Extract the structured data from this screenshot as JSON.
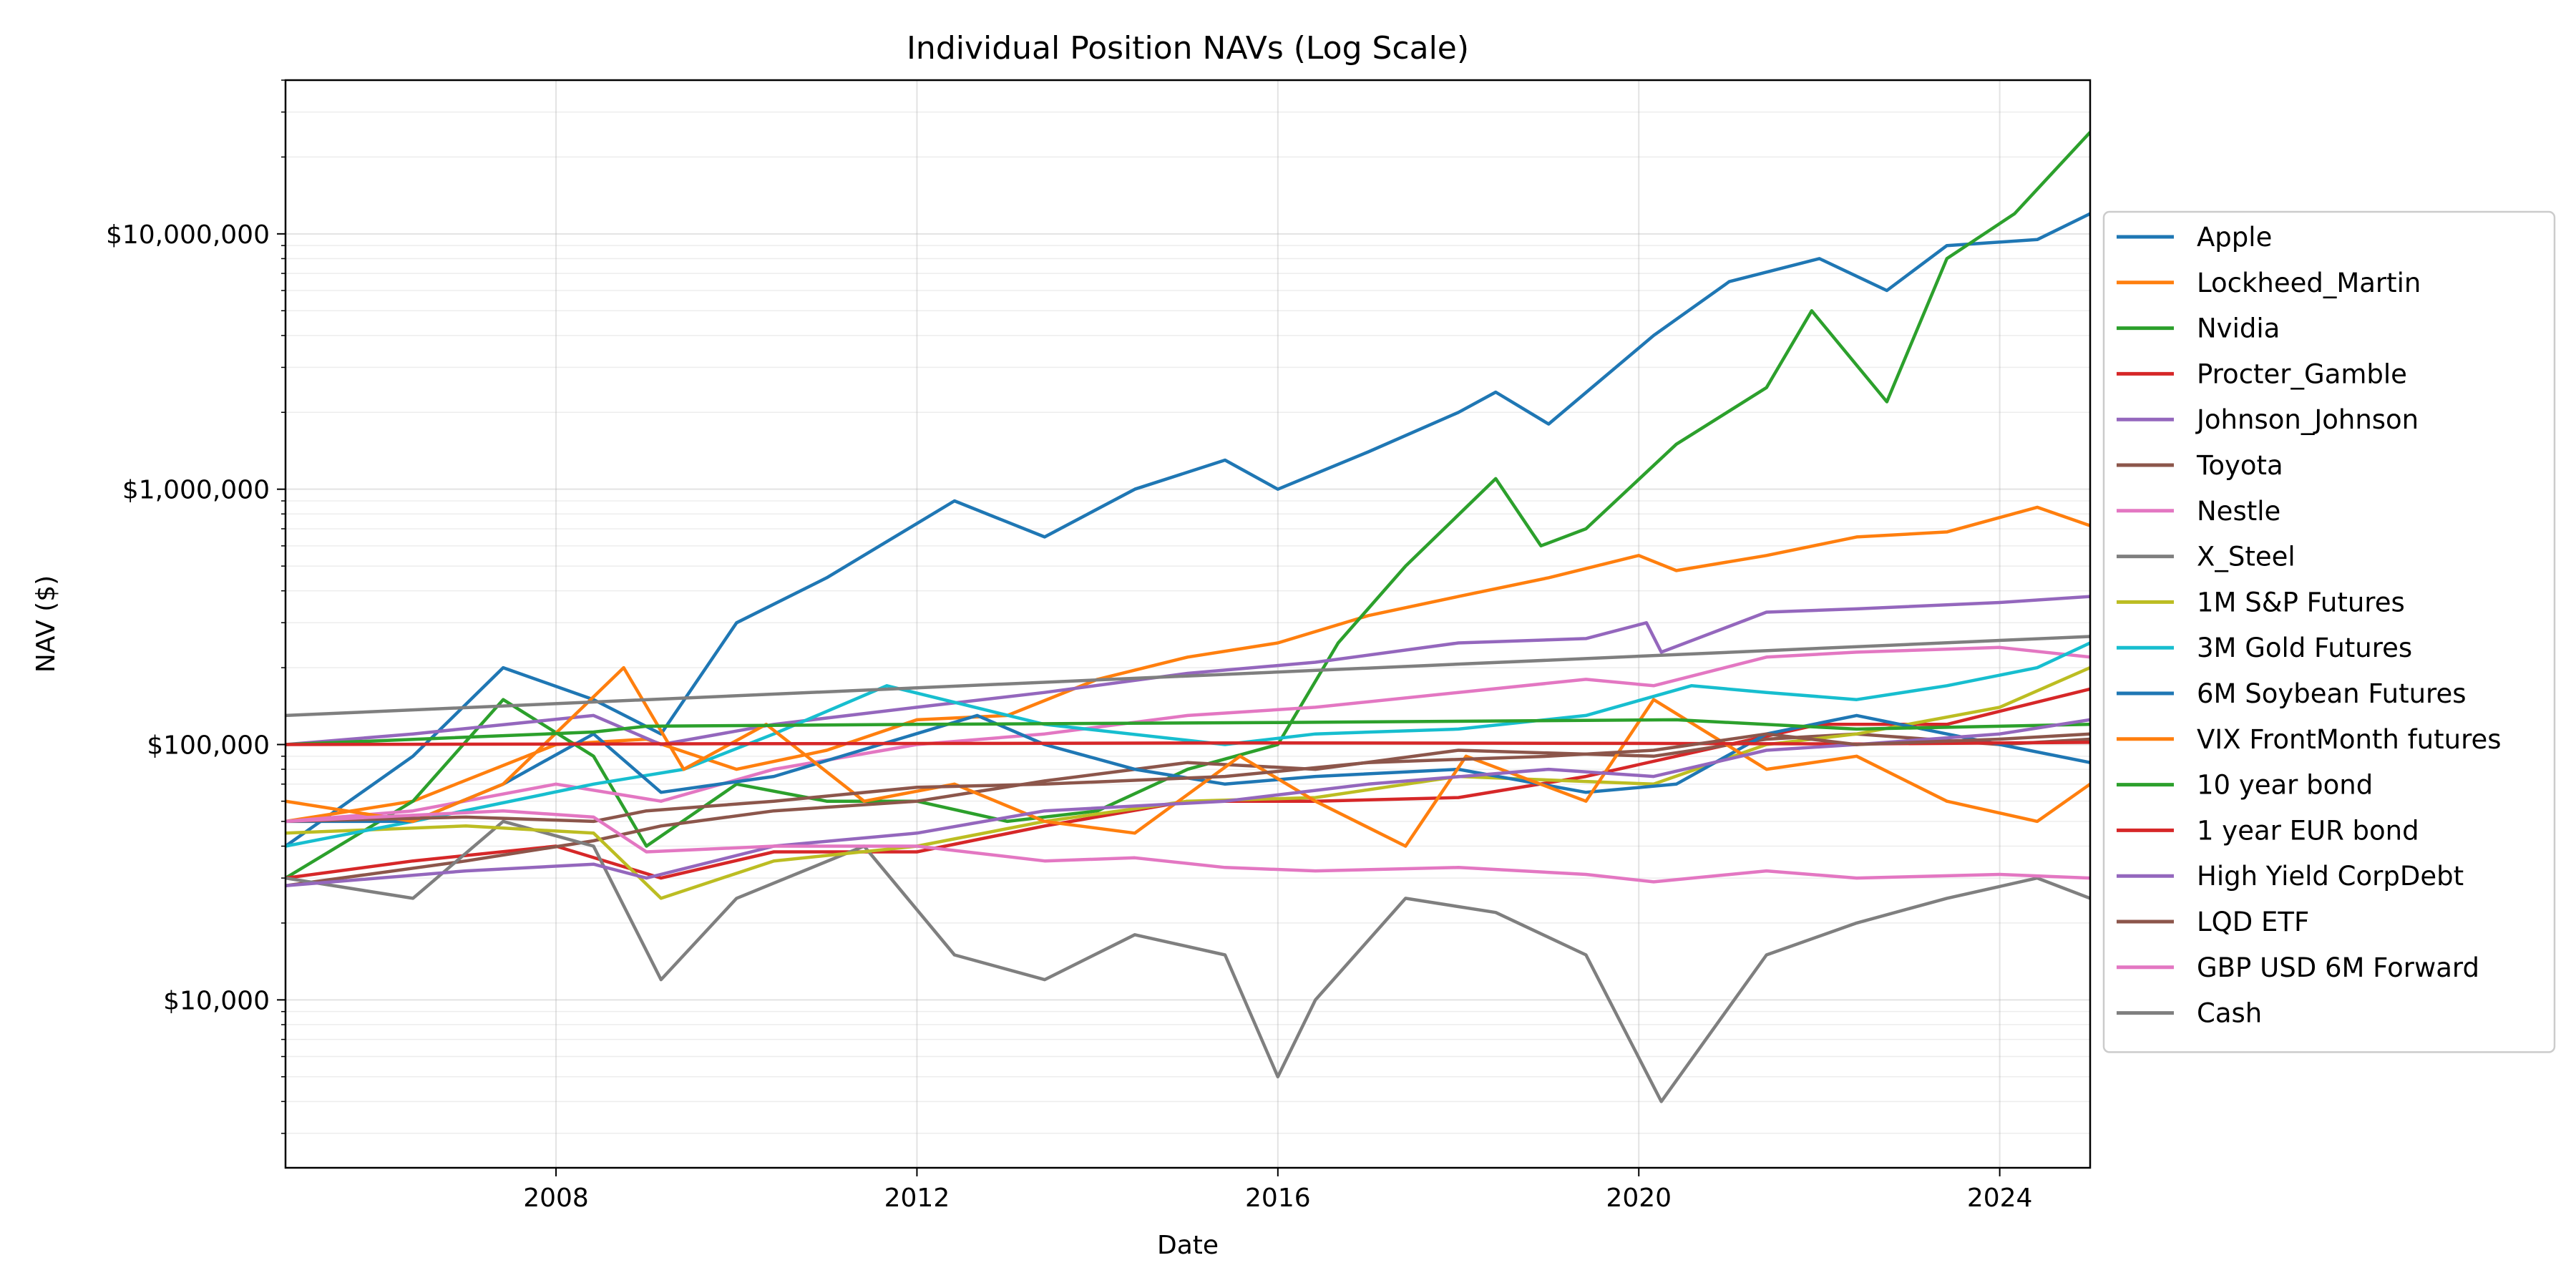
{
  "chart_data": {
    "type": "line",
    "title": "Individual Position NAVs (Log Scale)",
    "xlabel": "Date",
    "ylabel": "NAV ($)",
    "y_scale": "log",
    "xlim": [
      "2005-01-01",
      "2025-01-01"
    ],
    "ylim": [
      2200,
      40000000
    ],
    "x_ticks": [
      "2008-01-01",
      "2012-01-01",
      "2016-01-01",
      "2020-01-01",
      "2024-01-01"
    ],
    "x_tick_labels": [
      "2008",
      "2012",
      "2016",
      "2020",
      "2024"
    ],
    "y_ticks": [
      10000,
      100000,
      1000000,
      10000000
    ],
    "y_tick_labels": [
      "$10,000",
      "$100,000",
      "$1,000,000",
      "$10,000,000"
    ],
    "grid": true,
    "legend_position": "right, outside plot",
    "series": [
      {
        "name": "Apple",
        "color": "#1f77b4",
        "x": [
          "2005-01",
          "2006-06",
          "2007-06",
          "2008-06",
          "2009-03",
          "2010-01",
          "2011-01",
          "2012-06",
          "2013-06",
          "2014-06",
          "2015-06",
          "2016-01",
          "2017-01",
          "2018-01",
          "2018-06",
          "2019-01",
          "2020-03",
          "2021-01",
          "2022-01",
          "2022-10",
          "2023-06",
          "2024-06",
          "2025-01"
        ],
        "values": [
          40000,
          90000,
          200000,
          150000,
          110000,
          300000,
          450000,
          900000,
          650000,
          1000000,
          1300000,
          1000000,
          1400000,
          2000000,
          2400000,
          1800000,
          4000000,
          6500000,
          8000000,
          6000000,
          9000000,
          9500000,
          12000000
        ]
      },
      {
        "name": "Lockheed_Martin",
        "color": "#ff7f0e",
        "x": [
          "2005-01",
          "2006-06",
          "2008-01",
          "2009-01",
          "2010-01",
          "2011-01",
          "2012-01",
          "2013-01",
          "2014-01",
          "2015-01",
          "2016-01",
          "2017-01",
          "2018-01",
          "2019-01",
          "2020-01",
          "2020-06",
          "2021-06",
          "2022-06",
          "2023-06",
          "2024-06",
          "2025-01"
        ],
        "values": [
          50000,
          60000,
          100000,
          105000,
          80000,
          95000,
          125000,
          130000,
          180000,
          220000,
          250000,
          320000,
          380000,
          450000,
          550000,
          480000,
          550000,
          650000,
          680000,
          850000,
          720000
        ]
      },
      {
        "name": "Nvidia",
        "color": "#2ca02c",
        "x": [
          "2005-01",
          "2006-06",
          "2007-06",
          "2008-06",
          "2009-01",
          "2010-01",
          "2011-01",
          "2012-01",
          "2013-01",
          "2014-01",
          "2015-01",
          "2016-01",
          "2016-09",
          "2017-06",
          "2018-06",
          "2018-12",
          "2019-06",
          "2020-06",
          "2021-06",
          "2021-12",
          "2022-10",
          "2023-06",
          "2024-03",
          "2025-01"
        ],
        "values": [
          30000,
          60000,
          150000,
          90000,
          40000,
          70000,
          60000,
          60000,
          50000,
          55000,
          80000,
          100000,
          250000,
          500000,
          1100000,
          600000,
          700000,
          1500000,
          2500000,
          5000000,
          2200000,
          8000000,
          12000000,
          25000000
        ]
      },
      {
        "name": "Procter_Gamble",
        "color": "#d62728",
        "x": [
          "2005-01",
          "2006-06",
          "2008-01",
          "2009-03",
          "2010-06",
          "2012-01",
          "2013-06",
          "2015-01",
          "2016-06",
          "2018-01",
          "2019-06",
          "2020-06",
          "2022-01",
          "2023-06",
          "2025-01"
        ],
        "values": [
          30000,
          35000,
          40000,
          30000,
          38000,
          38000,
          48000,
          60000,
          60000,
          62000,
          75000,
          90000,
          120000,
          120000,
          165000
        ]
      },
      {
        "name": "Johnson_Johnson",
        "color": "#9467bd",
        "x": [
          "2005-01",
          "2006-06",
          "2008-06",
          "2009-03",
          "2010-06",
          "2012-01",
          "2013-06",
          "2015-01",
          "2016-06",
          "2018-01",
          "2019-06",
          "2020-02",
          "2020-04",
          "2021-06",
          "2022-06",
          "2024-01",
          "2025-01"
        ],
        "values": [
          100000,
          110000,
          130000,
          100000,
          120000,
          140000,
          160000,
          190000,
          210000,
          250000,
          260000,
          300000,
          230000,
          330000,
          340000,
          360000,
          380000
        ]
      },
      {
        "name": "Toyota",
        "color": "#8c564b",
        "x": [
          "2005-01",
          "2007-01",
          "2008-06",
          "2009-03",
          "2010-06",
          "2012-01",
          "2013-06",
          "2015-01",
          "2016-06",
          "2018-01",
          "2020-03",
          "2021-06",
          "2022-06",
          "2024-01",
          "2025-01"
        ],
        "values": [
          28000,
          35000,
          42000,
          48000,
          55000,
          60000,
          72000,
          85000,
          80000,
          95000,
          90000,
          105000,
          110000,
          100000,
          105000
        ]
      },
      {
        "name": "Nestle",
        "color": "#e377c2",
        "x": [
          "2005-01",
          "2006-06",
          "2008-01",
          "2009-03",
          "2010-06",
          "2012-01",
          "2013-06",
          "2015-01",
          "2016-06",
          "2018-01",
          "2019-06",
          "2020-03",
          "2021-06",
          "2022-06",
          "2024-01",
          "2025-01"
        ],
        "values": [
          50000,
          55000,
          70000,
          60000,
          80000,
          100000,
          110000,
          130000,
          140000,
          160000,
          180000,
          170000,
          220000,
          230000,
          240000,
          220000
        ]
      },
      {
        "name": "X_Steel",
        "color": "#7f7f7f",
        "x": [
          "2005-01",
          "2006-06",
          "2007-06",
          "2008-06",
          "2009-03",
          "2010-01",
          "2011-06",
          "2012-06",
          "2013-06",
          "2014-06",
          "2015-06",
          "2016-01",
          "2016-06",
          "2017-06",
          "2018-06",
          "2019-06",
          "2020-04",
          "2021-06",
          "2022-06",
          "2023-06",
          "2024-06",
          "2025-01"
        ],
        "values": [
          30000,
          25000,
          50000,
          40000,
          12000,
          25000,
          40000,
          15000,
          12000,
          18000,
          15000,
          5000,
          10000,
          25000,
          22000,
          15000,
          4000,
          15000,
          20000,
          25000,
          30000,
          25000
        ]
      },
      {
        "name": "1M S&P Futures",
        "color": "#bcbd22",
        "x": [
          "2005-01",
          "2007-01",
          "2008-06",
          "2009-03",
          "2010-06",
          "2012-01",
          "2013-06",
          "2015-01",
          "2016-06",
          "2018-01",
          "2020-03",
          "2021-06",
          "2022-06",
          "2024-01",
          "2025-01"
        ],
        "values": [
          45000,
          48000,
          45000,
          25000,
          35000,
          40000,
          50000,
          60000,
          62000,
          75000,
          70000,
          100000,
          110000,
          140000,
          200000
        ]
      },
      {
        "name": "3M Gold Futures",
        "color": "#17becf",
        "x": [
          "2005-01",
          "2006-06",
          "2008-06",
          "2009-06",
          "2010-06",
          "2011-09",
          "2013-06",
          "2015-06",
          "2016-06",
          "2018-01",
          "2019-06",
          "2020-08",
          "2021-06",
          "2022-06",
          "2023-06",
          "2024-06",
          "2025-01"
        ],
        "values": [
          40000,
          50000,
          70000,
          80000,
          110000,
          170000,
          120000,
          100000,
          110000,
          115000,
          130000,
          170000,
          160000,
          150000,
          170000,
          200000,
          250000
        ]
      },
      {
        "name": "6M Soybean Futures",
        "color": "#1f77b4",
        "x": [
          "2005-01",
          "2006-06",
          "2007-06",
          "2008-06",
          "2009-03",
          "2010-06",
          "2012-09",
          "2013-06",
          "2014-06",
          "2015-06",
          "2016-06",
          "2018-01",
          "2019-06",
          "2020-06",
          "2021-06",
          "2022-06",
          "2023-06",
          "2025-01"
        ],
        "values": [
          50000,
          50000,
          70000,
          110000,
          65000,
          75000,
          130000,
          100000,
          80000,
          70000,
          75000,
          80000,
          65000,
          70000,
          110000,
          130000,
          110000,
          85000
        ]
      },
      {
        "name": "VIX FrontMonth futures",
        "color": "#ff7f0e",
        "x": [
          "2005-01",
          "2006-06",
          "2007-06",
          "2008-10",
          "2009-06",
          "2010-05",
          "2011-06",
          "2012-06",
          "2013-06",
          "2014-06",
          "2015-08",
          "2016-06",
          "2017-06",
          "2018-02",
          "2019-06",
          "2020-03",
          "2021-06",
          "2022-06",
          "2023-06",
          "2024-06",
          "2025-01"
        ],
        "values": [
          60000,
          50000,
          70000,
          200000,
          80000,
          120000,
          60000,
          70000,
          50000,
          45000,
          90000,
          60000,
          40000,
          90000,
          60000,
          150000,
          80000,
          90000,
          60000,
          50000,
          70000
        ]
      },
      {
        "name": "10 year bond",
        "color": "#2ca02c",
        "x": [
          "2005-01",
          "2008-06",
          "2009-01",
          "2012-01",
          "2016-01",
          "2020-06",
          "2022-06",
          "2025-01"
        ],
        "values": [
          100000,
          112000,
          118000,
          120000,
          122000,
          125000,
          115000,
          120000
        ]
      },
      {
        "name": "1 year EUR bond",
        "color": "#d62728",
        "x": [
          "2005-01",
          "2008-06",
          "2012-01",
          "2016-01",
          "2020-06",
          "2022-06",
          "2025-01"
        ],
        "values": [
          100000,
          100500,
          101000,
          101500,
          101000,
          100500,
          102000
        ]
      },
      {
        "name": "High Yield CorpDebt",
        "color": "#9467bd",
        "x": [
          "2005-01",
          "2007-01",
          "2008-06",
          "2009-01",
          "2010-06",
          "2012-01",
          "2013-06",
          "2015-06",
          "2017-01",
          "2019-01",
          "2020-03",
          "2021-06",
          "2022-06",
          "2024-01",
          "2025-01"
        ],
        "values": [
          28000,
          32000,
          34000,
          30000,
          40000,
          45000,
          55000,
          60000,
          70000,
          80000,
          75000,
          95000,
          100000,
          110000,
          125000
        ]
      },
      {
        "name": "LQD ETF",
        "color": "#8c564b",
        "x": [
          "2005-01",
          "2007-01",
          "2008-06",
          "2009-01",
          "2010-06",
          "2012-01",
          "2013-06",
          "2015-06",
          "2017-01",
          "2019-01",
          "2020-03",
          "2021-06",
          "2022-06",
          "2024-01",
          "2025-01"
        ],
        "values": [
          50000,
          52000,
          50000,
          55000,
          60000,
          68000,
          70000,
          75000,
          85000,
          90000,
          95000,
          110000,
          100000,
          105000,
          110000
        ]
      },
      {
        "name": "GBP USD 6M Forward",
        "color": "#e377c2",
        "x": [
          "2005-01",
          "2007-06",
          "2008-06",
          "2009-01",
          "2010-06",
          "2012-01",
          "2013-06",
          "2014-06",
          "2015-06",
          "2016-06",
          "2018-01",
          "2019-06",
          "2020-03",
          "2021-06",
          "2022-06",
          "2024-01",
          "2025-01"
        ],
        "values": [
          50000,
          55000,
          52000,
          38000,
          40000,
          40000,
          35000,
          36000,
          33000,
          32000,
          33000,
          31000,
          29000,
          32000,
          30000,
          31000,
          30000
        ]
      },
      {
        "name": "Cash",
        "color": "#7f7f7f",
        "x": [
          "2005-01",
          "2025-01"
        ],
        "values": [
          130000,
          265000
        ]
      }
    ]
  }
}
